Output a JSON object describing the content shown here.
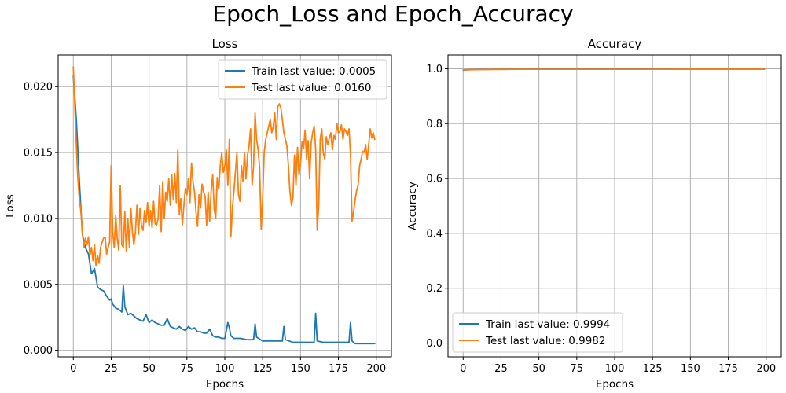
{
  "figure": {
    "title": "Epoch_Loss and Epoch_Accuracy"
  },
  "chart_data": [
    {
      "type": "line",
      "title": "Loss",
      "xlabel": "Epochs",
      "ylabel": "Loss",
      "xlim": [
        -10,
        210
      ],
      "ylim": [
        -0.0005,
        0.0224
      ],
      "xticks": [
        0,
        25,
        50,
        75,
        100,
        125,
        150,
        175,
        200
      ],
      "xtick_labels": [
        "0",
        "25",
        "50",
        "75",
        "100",
        "125",
        "150",
        "175",
        "200"
      ],
      "yticks": [
        0.0,
        0.005,
        0.01,
        0.015,
        0.02
      ],
      "ytick_labels": [
        "0.000",
        "0.005",
        "0.010",
        "0.015",
        "0.020"
      ],
      "grid": true,
      "legend": "top-right",
      "series": [
        {
          "name": "Train last value: 0.0005",
          "color": "#1f77b4",
          "x": [
            0,
            2,
            4,
            6,
            8,
            10,
            12,
            14,
            16,
            18,
            20,
            22,
            24,
            25,
            26,
            28,
            30,
            32,
            33,
            34,
            36,
            38,
            40,
            42,
            44,
            46,
            48,
            50,
            52,
            54,
            56,
            58,
            60,
            62,
            64,
            66,
            68,
            70,
            72,
            74,
            76,
            78,
            80,
            82,
            84,
            86,
            88,
            90,
            92,
            94,
            96,
            98,
            100,
            102,
            103,
            104,
            106,
            110,
            115,
            119,
            120,
            121,
            125,
            130,
            135,
            138,
            139,
            140,
            145,
            150,
            155,
            159,
            160,
            161,
            165,
            170,
            175,
            180,
            182,
            183,
            184,
            186,
            190,
            195,
            199
          ],
          "y": [
            0.0208,
            0.0175,
            0.0128,
            0.0088,
            0.0078,
            0.0073,
            0.0058,
            0.0062,
            0.0048,
            0.0046,
            0.0045,
            0.0041,
            0.0038,
            0.0039,
            0.0035,
            0.0032,
            0.0031,
            0.0029,
            0.0049,
            0.0033,
            0.0027,
            0.0028,
            0.0026,
            0.0024,
            0.0023,
            0.0022,
            0.0027,
            0.0021,
            0.0023,
            0.0021,
            0.002,
            0.0019,
            0.0019,
            0.0024,
            0.0018,
            0.0017,
            0.0016,
            0.0018,
            0.0016,
            0.0015,
            0.0018,
            0.0016,
            0.0017,
            0.0014,
            0.0014,
            0.0013,
            0.0013,
            0.0016,
            0.0011,
            0.001,
            0.001,
            0.0009,
            0.0009,
            0.0021,
            0.0017,
            0.0011,
            0.0009,
            0.0009,
            0.0008,
            0.0008,
            0.002,
            0.001,
            0.0007,
            0.0007,
            0.0007,
            0.0007,
            0.0018,
            0.0008,
            0.0006,
            0.0006,
            0.0006,
            0.0006,
            0.0028,
            0.0007,
            0.0006,
            0.0006,
            0.0006,
            0.0006,
            0.0006,
            0.0021,
            0.0007,
            0.0005,
            0.0005,
            0.0005,
            0.0005
          ]
        },
        {
          "name": "Test last value: 0.0160",
          "color": "#ff7f0e",
          "x": [
            0,
            1,
            2,
            3,
            4,
            5,
            6,
            7,
            8,
            9,
            10,
            11,
            12,
            13,
            14,
            15,
            16,
            17,
            18,
            19,
            20,
            21,
            22,
            23,
            24,
            25,
            26,
            27,
            28,
            29,
            30,
            31,
            32,
            33,
            34,
            35,
            36,
            37,
            38,
            39,
            40,
            41,
            42,
            43,
            44,
            45,
            46,
            47,
            48,
            49,
            50,
            51,
            52,
            53,
            54,
            55,
            56,
            57,
            58,
            59,
            60,
            61,
            62,
            63,
            64,
            65,
            66,
            67,
            68,
            69,
            70,
            71,
            72,
            73,
            74,
            75,
            76,
            77,
            78,
            79,
            80,
            81,
            82,
            83,
            84,
            85,
            86,
            87,
            88,
            89,
            90,
            91,
            92,
            93,
            94,
            95,
            96,
            97,
            98,
            99,
            100,
            101,
            102,
            103,
            104,
            105,
            106,
            107,
            108,
            109,
            110,
            111,
            112,
            113,
            114,
            115,
            116,
            117,
            118,
            119,
            120,
            121,
            122,
            123,
            124,
            125,
            126,
            127,
            128,
            129,
            130,
            131,
            132,
            133,
            134,
            135,
            136,
            137,
            138,
            139,
            140,
            141,
            142,
            143,
            144,
            145,
            146,
            147,
            148,
            149,
            150,
            151,
            152,
            153,
            154,
            155,
            156,
            157,
            158,
            159,
            160,
            161,
            162,
            163,
            164,
            165,
            166,
            167,
            168,
            169,
            170,
            171,
            172,
            173,
            174,
            175,
            176,
            177,
            178,
            179,
            180,
            181,
            182,
            183,
            184,
            185,
            186,
            187,
            188,
            189,
            190,
            191,
            192,
            193,
            194,
            195,
            196,
            197,
            198,
            199
          ],
          "y": [
            0.0215,
            0.0185,
            0.0155,
            0.013,
            0.0115,
            0.0105,
            0.009,
            0.0078,
            0.0085,
            0.008,
            0.0086,
            0.0072,
            0.0078,
            0.0068,
            0.008,
            0.0064,
            0.0072,
            0.0066,
            0.0078,
            0.0082,
            0.0085,
            0.0086,
            0.0073,
            0.0078,
            0.0082,
            0.014,
            0.009,
            0.0078,
            0.0102,
            0.0085,
            0.0076,
            0.0125,
            0.008,
            0.0078,
            0.0105,
            0.0075,
            0.01,
            0.0078,
            0.0108,
            0.009,
            0.008,
            0.009,
            0.011,
            0.0088,
            0.0108,
            0.0095,
            0.0091,
            0.0106,
            0.0097,
            0.0112,
            0.0094,
            0.0106,
            0.0093,
            0.0113,
            0.0096,
            0.0095,
            0.01,
            0.0125,
            0.009,
            0.0128,
            0.01,
            0.012,
            0.0113,
            0.013,
            0.011,
            0.0133,
            0.0114,
            0.0134,
            0.0112,
            0.0152,
            0.0103,
            0.0115,
            0.0095,
            0.011,
            0.0123,
            0.0118,
            0.013,
            0.0112,
            0.0142,
            0.0128,
            0.012,
            0.0105,
            0.0094,
            0.0118,
            0.0108,
            0.0126,
            0.012,
            0.0117,
            0.0095,
            0.012,
            0.0098,
            0.0121,
            0.0133,
            0.0107,
            0.01,
            0.0131,
            0.0122,
            0.014,
            0.015,
            0.0135,
            0.014,
            0.0152,
            0.0125,
            0.016,
            0.0086,
            0.0108,
            0.012,
            0.0135,
            0.015,
            0.0118,
            0.0113,
            0.014,
            0.0128,
            0.015,
            0.013,
            0.0148,
            0.0155,
            0.0168,
            0.0125,
            0.014,
            0.018,
            0.016,
            0.0152,
            0.0138,
            0.0092,
            0.0115,
            0.015,
            0.016,
            0.0165,
            0.017,
            0.0175,
            0.0165,
            0.017,
            0.018,
            0.016,
            0.0185,
            0.0187,
            0.0184,
            0.0175,
            0.0165,
            0.016,
            0.0155,
            0.014,
            0.012,
            0.011,
            0.0116,
            0.0148,
            0.0125,
            0.0154,
            0.0133,
            0.0142,
            0.0158,
            0.0153,
            0.0167,
            0.0145,
            0.0159,
            0.013,
            0.0157,
            0.0165,
            0.017,
            0.0152,
            0.0091,
            0.011,
            0.016,
            0.0168,
            0.015,
            0.0145,
            0.0162,
            0.0156,
            0.0161,
            0.0165,
            0.0152,
            0.0163,
            0.016,
            0.0172,
            0.0165,
            0.0166,
            0.0171,
            0.016,
            0.0168,
            0.0166,
            0.0163,
            0.0168,
            0.0148,
            0.0098,
            0.0105,
            0.0114,
            0.0121,
            0.0125,
            0.014,
            0.0145,
            0.0151,
            0.015,
            0.0156,
            0.0145,
            0.0156,
            0.0168,
            0.0161,
            0.0165,
            0.016
          ]
        }
      ]
    },
    {
      "type": "line",
      "title": "Accuracy",
      "xlabel": "Epochs",
      "ylabel": "Accuracy",
      "xlim": [
        -10,
        210
      ],
      "ylim": [
        -0.05,
        1.05
      ],
      "xticks": [
        0,
        25,
        50,
        75,
        100,
        125,
        150,
        175,
        200
      ],
      "xtick_labels": [
        "0",
        "25",
        "50",
        "75",
        "100",
        "125",
        "150",
        "175",
        "200"
      ],
      "yticks": [
        0.0,
        0.2,
        0.4,
        0.6,
        0.8,
        1.0
      ],
      "ytick_labels": [
        "0.0",
        "0.2",
        "0.4",
        "0.6",
        "0.8",
        "1.0"
      ],
      "grid": true,
      "legend": "bottom-left",
      "series": [
        {
          "name": "Train last value: 0.9994",
          "color": "#1f77b4",
          "x": [
            0,
            5,
            10,
            20,
            30,
            40,
            50,
            75,
            100,
            125,
            150,
            175,
            199
          ],
          "y": [
            0.995,
            0.997,
            0.9975,
            0.998,
            0.9982,
            0.9985,
            0.9987,
            0.999,
            0.9991,
            0.9992,
            0.9993,
            0.9993,
            0.9994
          ]
        },
        {
          "name": "Test last value: 0.9982",
          "color": "#ff7f0e",
          "x": [
            0,
            5,
            10,
            20,
            30,
            40,
            50,
            75,
            100,
            125,
            150,
            175,
            199
          ],
          "y": [
            0.996,
            0.9965,
            0.997,
            0.9975,
            0.9977,
            0.998,
            0.998,
            0.998,
            0.9981,
            0.9981,
            0.9982,
            0.9982,
            0.9982
          ]
        }
      ]
    }
  ]
}
